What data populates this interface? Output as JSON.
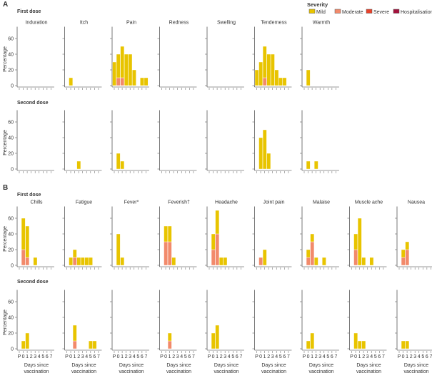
{
  "legend": {
    "title": "Severity",
    "items": [
      {
        "label": "Mild",
        "color": "#e8c400"
      },
      {
        "label": "Moderate",
        "color": "#f28a6b"
      },
      {
        "label": "Severe",
        "color": "#e8432b"
      },
      {
        "label": "Hospitalisation",
        "color": "#a3123c"
      }
    ]
  },
  "panels": [
    {
      "label": "A"
    },
    {
      "label": "B"
    }
  ],
  "chart_data": [
    {
      "type": "bar",
      "stacked": true,
      "panel": "A",
      "dose": "First dose",
      "categories": [
        "P",
        "0",
        "1",
        "2",
        "3",
        "4",
        "5",
        "6",
        "7"
      ],
      "ylabel": "Percentage",
      "yticks": [
        0,
        20,
        40,
        60
      ],
      "ylim": [
        0,
        75
      ],
      "xlabel": "",
      "symptoms": [
        {
          "name": "Induration",
          "Mild": [
            0,
            0,
            0,
            0,
            0,
            0,
            0,
            0,
            0
          ]
        },
        {
          "name": "Itch",
          "Mild": [
            0,
            10,
            0,
            0,
            0,
            0,
            0,
            0,
            0
          ]
        },
        {
          "name": "Pain",
          "Mild": [
            30,
            30,
            40,
            40,
            40,
            20,
            0,
            10,
            10
          ],
          "Moderate": [
            0,
            10,
            10,
            0,
            0,
            0,
            0,
            0,
            0
          ]
        },
        {
          "name": "Redness",
          "Mild": [
            0,
            0,
            0,
            0,
            0,
            0,
            0,
            0,
            0
          ]
        },
        {
          "name": "Swelling",
          "Mild": [
            0,
            0,
            0,
            0,
            0,
            0,
            0,
            0,
            0
          ]
        },
        {
          "name": "Tenderness",
          "Mild": [
            20,
            30,
            40,
            40,
            40,
            20,
            10,
            10,
            0
          ],
          "Moderate": [
            0,
            0,
            10,
            0,
            0,
            0,
            0,
            0,
            0
          ]
        },
        {
          "name": "Warmth",
          "Mild": [
            0,
            20,
            0,
            0,
            0,
            0,
            0,
            0,
            0
          ]
        }
      ]
    },
    {
      "type": "bar",
      "stacked": true,
      "panel": "A",
      "dose": "Second dose",
      "categories": [
        "P",
        "0",
        "1",
        "2",
        "3",
        "4",
        "5",
        "6",
        "7"
      ],
      "ylabel": "Percentage",
      "yticks": [
        0,
        20,
        40,
        60
      ],
      "ylim": [
        0,
        75
      ],
      "xlabel": "",
      "symptoms": [
        {
          "name": "Induration",
          "Mild": [
            0,
            0,
            0,
            0,
            0,
            0,
            0,
            0,
            0
          ]
        },
        {
          "name": "Itch",
          "Mild": [
            0,
            0,
            0,
            10,
            0,
            0,
            0,
            0,
            0
          ]
        },
        {
          "name": "Pain",
          "Mild": [
            0,
            20,
            10,
            0,
            0,
            0,
            0,
            0,
            0
          ]
        },
        {
          "name": "Redness",
          "Mild": [
            0,
            0,
            0,
            0,
            0,
            0,
            0,
            0,
            0
          ]
        },
        {
          "name": "Swelling",
          "Mild": [
            0,
            0,
            0,
            0,
            0,
            0,
            0,
            0,
            0
          ]
        },
        {
          "name": "Tenderness",
          "Mild": [
            0,
            40,
            50,
            20,
            0,
            0,
            0,
            0,
            0
          ]
        },
        {
          "name": "Warmth",
          "Mild": [
            0,
            10,
            0,
            10,
            0,
            0,
            0,
            0,
            0
          ]
        }
      ]
    },
    {
      "type": "bar",
      "stacked": true,
      "panel": "B",
      "dose": "First dose",
      "categories": [
        "P",
        "0",
        "1",
        "2",
        "3",
        "4",
        "5",
        "6",
        "7"
      ],
      "ylabel": "Percentage",
      "yticks": [
        0,
        20,
        40,
        60
      ],
      "ylim": [
        0,
        75
      ],
      "xlabel": "",
      "symptoms": [
        {
          "name": "Chills",
          "Mild": [
            0,
            40,
            40,
            0,
            10,
            0,
            0,
            0,
            0
          ],
          "Moderate": [
            0,
            20,
            10,
            0,
            0,
            0,
            0,
            0,
            0
          ]
        },
        {
          "name": "Fatigue",
          "Mild": [
            0,
            10,
            10,
            10,
            10,
            10,
            10,
            0,
            0
          ],
          "Moderate": [
            0,
            0,
            10,
            0,
            0,
            0,
            0,
            0,
            0
          ]
        },
        {
          "name": "Fever*",
          "Mild": [
            0,
            40,
            10,
            0,
            0,
            0,
            0,
            0,
            0
          ]
        },
        {
          "name": "Feverish†",
          "Mild": [
            0,
            20,
            20,
            10,
            0,
            0,
            0,
            0,
            0
          ],
          "Moderate": [
            0,
            30,
            30,
            0,
            0,
            0,
            0,
            0,
            0
          ]
        },
        {
          "name": "Headache",
          "Mild": [
            0,
            20,
            30,
            10,
            10,
            0,
            0,
            0,
            0
          ],
          "Moderate": [
            0,
            20,
            40,
            0,
            0,
            0,
            0,
            0,
            0
          ]
        },
        {
          "name": "Joint pain",
          "Mild": [
            0,
            0,
            20,
            0,
            0,
            0,
            0,
            0,
            0
          ],
          "Moderate": [
            0,
            10,
            0,
            0,
            0,
            0,
            0,
            0,
            0
          ]
        },
        {
          "name": "Malaise",
          "Mild": [
            0,
            10,
            10,
            10,
            0,
            10,
            0,
            0,
            0
          ],
          "Moderate": [
            0,
            10,
            30,
            0,
            0,
            0,
            0,
            0,
            0
          ]
        },
        {
          "name": "Muscle ache",
          "Mild": [
            0,
            20,
            60,
            10,
            0,
            10,
            0,
            0,
            0
          ],
          "Moderate": [
            0,
            20,
            0,
            0,
            0,
            0,
            0,
            0,
            0
          ]
        },
        {
          "name": "Nausea",
          "Mild": [
            0,
            10,
            10,
            0,
            0,
            0,
            0,
            0,
            0
          ],
          "Moderate": [
            0,
            10,
            20,
            0,
            0,
            0,
            0,
            0,
            0
          ]
        }
      ]
    },
    {
      "type": "bar",
      "stacked": true,
      "panel": "B",
      "dose": "Second dose",
      "categories": [
        "P",
        "0",
        "1",
        "2",
        "3",
        "4",
        "5",
        "6",
        "7"
      ],
      "ylabel": "Percentage",
      "yticks": [
        0,
        20,
        40,
        60
      ],
      "ylim": [
        0,
        75
      ],
      "xlabel": "Days since vaccination",
      "xlabel_lines": [
        "Days since",
        "vaccination"
      ],
      "symptoms": [
        {
          "name": "Chills",
          "Mild": [
            0,
            10,
            20,
            0,
            0,
            0,
            0,
            0,
            0
          ]
        },
        {
          "name": "Fatigue",
          "Mild": [
            0,
            0,
            20,
            0,
            0,
            0,
            10,
            10,
            0
          ],
          "Moderate": [
            0,
            0,
            10,
            0,
            0,
            0,
            0,
            0,
            0
          ]
        },
        {
          "name": "Fever*",
          "Mild": [
            0,
            0,
            0,
            0,
            0,
            0,
            0,
            0,
            0
          ]
        },
        {
          "name": "Feverish†",
          "Mild": [
            0,
            0,
            10,
            0,
            0,
            0,
            0,
            0,
            0
          ],
          "Moderate": [
            0,
            0,
            10,
            0,
            0,
            0,
            0,
            0,
            0
          ]
        },
        {
          "name": "Headache",
          "Mild": [
            0,
            20,
            30,
            0,
            0,
            0,
            0,
            0,
            0
          ]
        },
        {
          "name": "Joint pain",
          "Mild": [
            0,
            0,
            0,
            0,
            0,
            0,
            0,
            0,
            0
          ]
        },
        {
          "name": "Malaise",
          "Mild": [
            0,
            10,
            20,
            0,
            0,
            0,
            0,
            0,
            0
          ]
        },
        {
          "name": "Muscle ache",
          "Mild": [
            0,
            20,
            10,
            10,
            0,
            0,
            0,
            0,
            0
          ]
        },
        {
          "name": "Nausea",
          "Mild": [
            0,
            10,
            10,
            0,
            0,
            0,
            0,
            0,
            0
          ]
        }
      ]
    }
  ]
}
